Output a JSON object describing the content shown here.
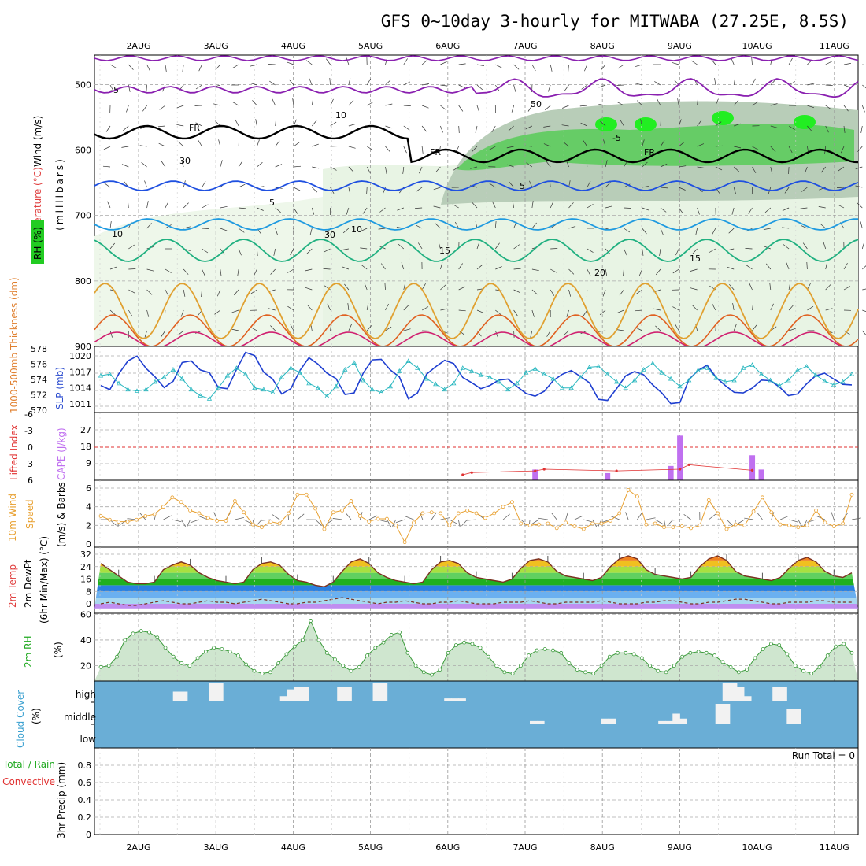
{
  "title": "GFS 0~10day 3-hourly for MITWABA (27.25E, 8.5S)",
  "days": [
    "2AUG",
    "3AUG",
    "4AUG",
    "5AUG",
    "6AUG",
    "7AUG",
    "8AUG",
    "9AUG",
    "10AUG",
    "11AUG"
  ],
  "colors": {
    "slp": "#1f3fd0",
    "thickness": "#2bb8c0",
    "cape": "#c070f0",
    "lifted_index": "#e03030",
    "wind10m": "#e8a030",
    "rh2m": "#3a9a3a",
    "cloud_bg": "#6aaed6",
    "cloud_fill": "#f2f2f2"
  },
  "panels": {
    "upper": {
      "ylabel_rh": "RH (%)",
      "ylabel_temp": "Temperature (°C)",
      "ylabel_wind": "Wind (m/s)",
      "ylabel_unit": "(millibars)",
      "ticks": [
        "500",
        "600",
        "700",
        "800",
        "900"
      ],
      "freezing_label": "FR",
      "temp_contours": [
        "-5",
        "5",
        "10",
        "15",
        "20"
      ],
      "rh_contours": [
        "10",
        "30",
        "50"
      ]
    },
    "thickness_slp": {
      "ylabel_left": "1000-500mb Thickness (dm)",
      "ylabel_right": "SLP (mb)",
      "left_ticks": [
        "578",
        "576",
        "574",
        "572",
        "570"
      ],
      "right_ticks": [
        "1020",
        "1017",
        "1014",
        "1011"
      ]
    },
    "cape_li": {
      "ylabel_li": "Lifted Index",
      "ylabel_cape": "CAPE (J/kg)",
      "li_ticks": [
        "-6",
        "-3",
        "0",
        "3",
        "6"
      ],
      "cape_ticks": [
        "27",
        "18",
        "9"
      ]
    },
    "wind10m": {
      "ylabel1": "10m Wind",
      "ylabel2": "Speed",
      "ylabel3": "(m/s) & Barbs",
      "ticks": [
        "6",
        "4",
        "2",
        "0"
      ]
    },
    "temp2m": {
      "ylabel1": "2m Temp",
      "ylabel2": "2m DewPt",
      "ylabel3": "(6hr Min/Max) (°C)",
      "ticks": [
        "32",
        "24",
        "16",
        "8",
        "0"
      ]
    },
    "rh2m": {
      "ylabel1": "2m RH",
      "ylabel2": "(%)",
      "ticks": [
        "60",
        "40",
        "20"
      ]
    },
    "cloud": {
      "ylabel1": "Cloud Cover",
      "ylabel2": "(%)",
      "levels": [
        "high",
        "middle",
        "low"
      ]
    },
    "precip": {
      "ylabel1": "Total / Rain",
      "ylabel2": "Convective",
      "ylabel3": "3hr Precip (mm)",
      "ticks": [
        "0.8",
        "0.6",
        "0.4",
        "0.2",
        "0"
      ],
      "run_total": "Run Total = 0"
    }
  },
  "chart_data": [
    {
      "type": "line",
      "title": "1000-500mb Thickness / SLP",
      "x_unit": "3-hourly steps from 1 AUG 12Z",
      "series": [
        {
          "name": "SLP (mb)",
          "axis": "right",
          "values": [
            1014.6,
            1013.8,
            1016.8,
            1019.2,
            1020.1,
            1017.8,
            1016.2,
            1014.2,
            1015.4,
            1018.9,
            1019.2,
            1017.5,
            1017.0,
            1014.2,
            1014.0,
            1017.6,
            1020.8,
            1020.2,
            1017.1,
            1015.8,
            1013.0,
            1014.0,
            1017.4,
            1019.8,
            1018.6,
            1016.9,
            1015.9,
            1012.9,
            1013.2,
            1016.9,
            1019.4,
            1019.5,
            1017.5,
            1016.2,
            1012.1,
            1013.2,
            1016.7,
            1018.1,
            1019.3,
            1018.7,
            1016.1,
            1015.1,
            1014.0,
            1014.6,
            1015.6,
            1015.8,
            1014.4,
            1013.1,
            1012.6,
            1013.5,
            1015.5,
            1016.7,
            1017.4,
            1016.3,
            1015.1,
            1012.0,
            1011.8,
            1014.0,
            1016.4,
            1017.2,
            1016.6,
            1014.7,
            1013.2,
            1011.2,
            1011.4,
            1015.7,
            1017.4,
            1018.4,
            1016.1,
            1014.6,
            1013.3,
            1013.2,
            1014.1,
            1015.6,
            1015.5,
            1014.3,
            1012.7,
            1013.0,
            1014.9,
            1016.4,
            1016.9,
            1015.8,
            1014.8,
            1014.7
          ]
        },
        {
          "name": "1000-500mb Thickness (dm)",
          "axis": "left",
          "values": [
            574.6,
            574.8,
            573.6,
            572.8,
            572.6,
            572.8,
            573.8,
            574.4,
            575.4,
            574.2,
            572.8,
            572.0,
            571.6,
            573.0,
            574.6,
            575.6,
            574.8,
            573.0,
            572.8,
            572.4,
            574.4,
            575.6,
            575.0,
            573.6,
            573.0,
            571.9,
            573.2,
            575.4,
            576.3,
            574.0,
            572.8,
            572.4,
            573.2,
            575.2,
            576.5,
            575.6,
            574.2,
            573.5,
            572.8,
            573.6,
            575.6,
            575.2,
            574.7,
            574.4,
            573.8,
            572.8,
            573.6,
            575.0,
            575.5,
            574.8,
            574.2,
            573.0,
            573.0,
            574.4,
            575.7,
            575.8,
            574.8,
            573.8,
            573.0,
            574.0,
            575.4,
            576.2,
            575.0,
            574.2,
            573.2,
            574.0,
            575.3,
            575.6,
            574.3,
            573.8,
            574.0,
            575.6,
            576.0,
            574.8,
            574.0,
            573.3,
            574.0,
            575.3,
            575.8,
            574.7,
            573.9,
            573.4,
            573.8,
            574.8
          ]
        }
      ]
    },
    {
      "type": "bar",
      "title": "CAPE / Lifted Index",
      "series": [
        {
          "name": "CAPE (J/kg)",
          "points": [
            {
              "x": "7AUG 12Z",
              "y": 6
            },
            {
              "x": "8AUG 12Z",
              "y": 4
            },
            {
              "x": "9AUG 09Z",
              "y": 8
            },
            {
              "x": "9AUG 12Z",
              "y": 25
            },
            {
              "x": "10AUG 12Z",
              "y": 14
            },
            {
              "x": "10AUG 15Z",
              "y": 6
            }
          ]
        },
        {
          "name": "Lifted Index",
          "points": [
            {
              "x": "6AUG 12Z",
              "y": 5
            },
            {
              "x": "6AUG 15Z",
              "y": 4.6
            },
            {
              "x": "7AUG 12Z",
              "y": 4.3
            },
            {
              "x": "7AUG 15Z",
              "y": 4
            },
            {
              "x": "8AUG 15Z",
              "y": 4.3
            },
            {
              "x": "9AUG 12Z",
              "y": 4
            },
            {
              "x": "9AUG 15Z",
              "y": 3.2
            },
            {
              "x": "10AUG 12Z",
              "y": 4.2
            }
          ]
        }
      ],
      "reference_line": {
        "value": 0,
        "axis": "li"
      }
    },
    {
      "type": "line",
      "title": "10m Wind Speed",
      "ylim": [
        0,
        7
      ],
      "values": [
        3.0,
        2.6,
        2.4,
        2.4,
        2.6,
        3.0,
        3.2,
        4.0,
        5.0,
        4.5,
        3.6,
        3.3,
        2.8,
        2.5,
        2.5,
        4.6,
        3.4,
        2.1,
        1.8,
        2.4,
        2.2,
        3.3,
        5.3,
        5.3,
        3.8,
        1.6,
        3.4,
        3.6,
        4.6,
        3.0,
        2.4,
        2.7,
        2.7,
        2.0,
        0.2,
        2.3,
        3.3,
        3.4,
        3.3,
        2.0,
        3.3,
        3.6,
        3.3,
        2.8,
        3.3,
        4.0,
        4.5,
        2.2,
        2.0,
        2.1,
        2.2,
        1.7,
        2.3,
        1.9,
        1.6,
        2.2,
        2.2,
        2.5,
        3.3,
        5.8,
        5.1,
        2.1,
        2.2,
        1.8,
        1.8,
        1.9,
        1.7,
        2.0,
        4.7,
        3.3,
        1.6,
        2.1,
        2.0,
        3.5,
        5.0,
        3.4,
        2.1,
        2.0,
        1.8,
        2.0,
        3.6,
        2.3,
        1.9,
        2.2,
        5.3
      ]
    },
    {
      "type": "area",
      "title": "2m Temp / DewPt",
      "ylim": [
        -3,
        34
      ],
      "series": [
        {
          "name": "2m Temp",
          "values": [
            26,
            22,
            18,
            14,
            13,
            13,
            14,
            22,
            25,
            27,
            25,
            20,
            17,
            15,
            14,
            13,
            14,
            22,
            26,
            27,
            25,
            19,
            15,
            14,
            12,
            11,
            14,
            21,
            27,
            29,
            26,
            20,
            17,
            15,
            14,
            13,
            14,
            22,
            27,
            28,
            26,
            20,
            17,
            16,
            15,
            14,
            16,
            23,
            28,
            29,
            27,
            21,
            18,
            17,
            16,
            15,
            17,
            24,
            29,
            31,
            29,
            22,
            19,
            18,
            17,
            16,
            17,
            24,
            29,
            31,
            28,
            21,
            18,
            17,
            16,
            15,
            17,
            23,
            28,
            30,
            27,
            21,
            18,
            17,
            20
          ]
        },
        {
          "name": "2m DewPt",
          "values": [
            0,
            1,
            0,
            -1,
            -1,
            0,
            1,
            2,
            1,
            0,
            0,
            1,
            2,
            1,
            1,
            0,
            1,
            2,
            3,
            2,
            1,
            0,
            0,
            1,
            1,
            2,
            3,
            4,
            3,
            2,
            1,
            0,
            1,
            1,
            2,
            1,
            0,
            0,
            1,
            1,
            2,
            1,
            0,
            0,
            0,
            1,
            1,
            1,
            2,
            1,
            0,
            0,
            1,
            1,
            1,
            1,
            2,
            1,
            0,
            0,
            0,
            1,
            1,
            2,
            2,
            1,
            0,
            0,
            1,
            1,
            2,
            3,
            3,
            2,
            1,
            0,
            0,
            1,
            1,
            1,
            2,
            2,
            1,
            1,
            1
          ]
        }
      ]
    },
    {
      "type": "area",
      "title": "2m RH",
      "ylim": [
        10,
        62
      ],
      "values": [
        19,
        20,
        27,
        40,
        45,
        47,
        46,
        42,
        34,
        27,
        22,
        20,
        26,
        31,
        34,
        33,
        31,
        28,
        21,
        16,
        14,
        15,
        22,
        29,
        35,
        40,
        55,
        40,
        30,
        25,
        20,
        16,
        19,
        28,
        34,
        38,
        44,
        46,
        30,
        20,
        15,
        13,
        17,
        30,
        36,
        38,
        37,
        34,
        27,
        20,
        15,
        14,
        20,
        28,
        32,
        33,
        32,
        30,
        22,
        17,
        15,
        14,
        20,
        27,
        30,
        30,
        29,
        26,
        20,
        16,
        15,
        20,
        27,
        30,
        31,
        30,
        28,
        23,
        19,
        15,
        17,
        26,
        33,
        37,
        36,
        29,
        20,
        16,
        14,
        19,
        28,
        35,
        37,
        30
      ]
    },
    {
      "type": "bar",
      "title": "Cloud Cover",
      "series": [
        {
          "name": "high",
          "values": [
            0,
            0,
            0,
            0,
            0,
            0,
            0,
            0,
            0,
            0,
            0,
            20,
            20,
            0,
            0,
            0,
            40,
            40,
            0,
            0,
            0,
            0,
            0,
            0,
            0,
            0,
            10,
            25,
            30,
            30,
            0,
            0,
            0,
            0,
            30,
            30,
            0,
            0,
            0,
            40,
            40,
            0,
            0,
            0,
            0,
            0,
            0,
            0,
            0,
            5,
            5,
            5,
            0,
            0,
            0,
            0,
            0,
            0,
            0,
            0,
            0,
            0,
            0,
            0,
            0,
            0,
            0,
            0,
            0,
            0,
            0,
            0,
            0,
            0,
            0,
            0,
            0,
            0,
            0,
            0,
            0,
            0,
            0,
            0,
            0,
            0,
            0,
            0,
            40,
            40,
            30,
            10,
            0,
            0,
            0,
            30,
            30,
            0,
            0,
            0,
            0,
            0,
            0,
            0,
            0,
            0,
            0
          ]
        },
        {
          "name": "middle",
          "values": [
            0,
            0,
            0,
            0,
            0,
            0,
            0,
            0,
            0,
            0,
            0,
            0,
            0,
            0,
            0,
            0,
            0,
            0,
            0,
            0,
            0,
            0,
            0,
            0,
            0,
            0,
            0,
            0,
            0,
            0,
            0,
            0,
            0,
            0,
            0,
            0,
            0,
            0,
            0,
            0,
            0,
            0,
            0,
            0,
            0,
            0,
            0,
            0,
            0,
            0,
            0,
            0,
            0,
            0,
            0,
            0,
            0,
            0,
            0,
            0,
            0,
            5,
            5,
            0,
            0,
            0,
            0,
            0,
            0,
            0,
            0,
            10,
            10,
            0,
            0,
            0,
            0,
            0,
            0,
            5,
            5,
            20,
            10,
            0,
            0,
            0,
            0,
            40,
            40,
            0,
            0,
            0,
            0,
            0,
            0,
            0,
            0,
            30,
            30,
            0,
            0,
            0,
            0,
            0,
            0,
            0,
            0
          ]
        },
        {
          "name": "low",
          "values": [
            0,
            0,
            0,
            0,
            0,
            0,
            0,
            0,
            0,
            0,
            0,
            0,
            0,
            0,
            0,
            0,
            0,
            0,
            0,
            0,
            0,
            0,
            0,
            0,
            0,
            0,
            0,
            0,
            0,
            0,
            0,
            0,
            0,
            0,
            0,
            0,
            0,
            0,
            0,
            0,
            0,
            0,
            0,
            0,
            0,
            0,
            0,
            0,
            0,
            0,
            0,
            0,
            0,
            0,
            0,
            0,
            0,
            0,
            0,
            0,
            0,
            0,
            0,
            0,
            0,
            0,
            0,
            0,
            0,
            0,
            0,
            0,
            0,
            0,
            0,
            0,
            0,
            0,
            0,
            0,
            0,
            0,
            0,
            0,
            0,
            0,
            0,
            0,
            0,
            0,
            0,
            0,
            0,
            0,
            0,
            0,
            0,
            0,
            0,
            0,
            0,
            0,
            0,
            0,
            0,
            0,
            0
          ]
        }
      ]
    },
    {
      "type": "bar",
      "title": "3hr Precip",
      "ylim": [
        0,
        1
      ],
      "values": [
        0
      ]
    }
  ]
}
